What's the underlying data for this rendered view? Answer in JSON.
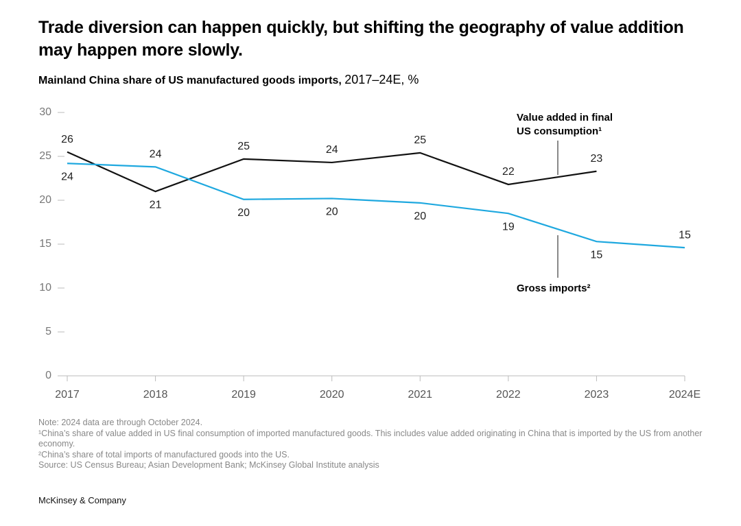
{
  "chart_data": {
    "type": "line",
    "title": "Trade diversion can happen quickly, but shifting the geography of value addition may happen more slowly.",
    "subtitle": "Mainland China share of US manufactured goods imports,",
    "subtitle_unit": "2017–24E, %",
    "categories": [
      "2017",
      "2018",
      "2019",
      "2020",
      "2021",
      "2022",
      "2023",
      "2024E"
    ],
    "series": [
      {
        "name": "Value added in final US consumption¹",
        "color": "#111111",
        "values": [
          25.5,
          21.0,
          24.7,
          24.3,
          25.4,
          21.8,
          23.3,
          null
        ],
        "value_labels": [
          "26",
          "21",
          "25",
          "24",
          "25",
          "22",
          "23",
          null
        ]
      },
      {
        "name": "Gross imports²",
        "color": "#1ea8df",
        "values": [
          24.2,
          23.8,
          20.1,
          20.2,
          19.7,
          18.5,
          15.3,
          14.6
        ],
        "value_labels": [
          "24",
          "24",
          "20",
          "20",
          "20",
          "19",
          "15",
          "15"
        ]
      }
    ],
    "ylim": [
      0,
      30
    ],
    "yticks": [
      0,
      5,
      10,
      15,
      20,
      25,
      30
    ],
    "notes": [
      "Note: 2024 data are through October 2024.",
      "¹China’s share of value added in US final consumption of imported manufactured goods. This includes value added originating in China that is imported by the US from another economy.",
      "²China’s share of total imports of manufactured goods into the US.",
      "Source: US Census Bureau; Asian Development Bank; McKinsey Global Institute analysis"
    ],
    "footer": "McKinsey & Company"
  }
}
